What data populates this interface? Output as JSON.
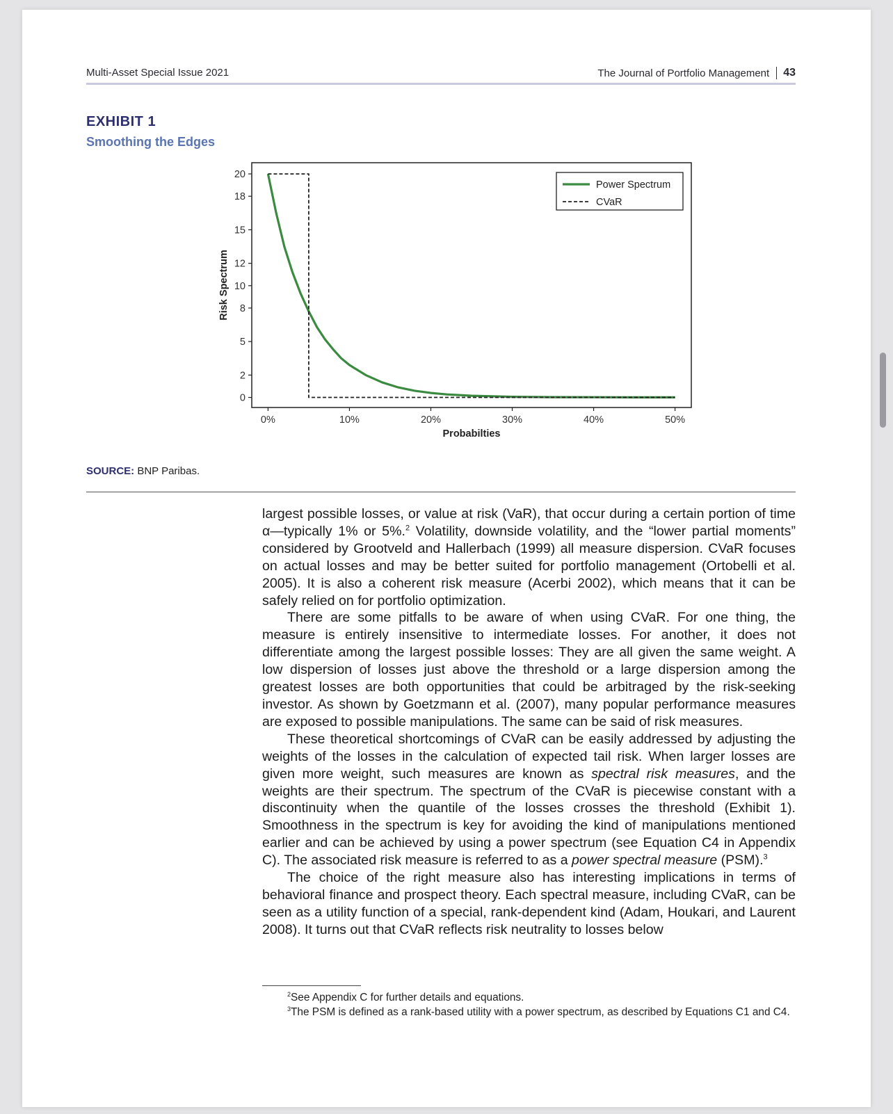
{
  "header": {
    "left": "Multi-Asset Special Issue 2021",
    "journal": "The Journal of Portfolio Management",
    "page_number": "43"
  },
  "exhibit": {
    "label": "EXHIBIT 1",
    "title": "Smoothing the Edges"
  },
  "source": {
    "label": "SOURCE:",
    "text": "BNP Paribas."
  },
  "chart_data": {
    "type": "line",
    "title": "",
    "xlabel": "Probabilties",
    "ylabel": "Risk Spectrum",
    "xlim": [
      -0.02,
      0.52
    ],
    "ylim": [
      -0.9,
      21
    ],
    "x_ticks": [
      0,
      0.1,
      0.2,
      0.3,
      0.4,
      0.5
    ],
    "x_tick_labels": [
      "0%",
      "10%",
      "20%",
      "30%",
      "40%",
      "50%"
    ],
    "y_ticks": [
      0,
      2,
      5,
      8,
      10,
      12,
      15,
      18,
      20
    ],
    "y_tick_labels": [
      "0",
      "2",
      "5",
      "8",
      "10",
      "12",
      "15",
      "18",
      "20"
    ],
    "grid": false,
    "legend": "top-right",
    "series": [
      {
        "name": "Power Spectrum",
        "style": "solid",
        "color": "#3a8a3f",
        "x": [
          0,
          0.01,
          0.02,
          0.03,
          0.04,
          0.05,
          0.06,
          0.07,
          0.08,
          0.09,
          0.1,
          0.12,
          0.14,
          0.16,
          0.18,
          0.2,
          0.22,
          0.25,
          0.3,
          0.35,
          0.4,
          0.45,
          0.5
        ],
        "y": [
          20,
          16.5,
          13.5,
          11.2,
          9.3,
          7.7,
          6.3,
          5.2,
          4.3,
          3.5,
          2.9,
          2.0,
          1.35,
          0.9,
          0.6,
          0.4,
          0.27,
          0.15,
          0.06,
          0.03,
          0.02,
          0.01,
          0.01
        ]
      },
      {
        "name": "CVaR",
        "style": "dashed",
        "color": "#222222",
        "x": [
          0,
          0.05,
          0.05,
          0.5
        ],
        "y": [
          20,
          20,
          0,
          0
        ]
      }
    ]
  },
  "body": {
    "p1_a": "largest possible losses, or value at risk (VaR), that occur during a certain portion of time α—typically 1% or 5%.",
    "p1_fn": "2",
    "p1_b": " Volatility, downside volatility, and the “lower partial moments” considered by Grootveld and Hallerbach (1999) all measure dispersion. CVaR focuses on actual losses and may be better suited for portfolio management (Ortobelli et al. 2005). It is also a coherent risk measure (Acerbi 2002), which means that it can be safely relied on for portfolio optimization.",
    "p2": "There are some pitfalls to be aware of when using CVaR. For one thing, the measure is entirely insensitive to intermediate losses. For another, it does not differentiate among the largest possible losses: They are all given the same weight. A low dispersion of losses just above the threshold or a large dispersion among the greatest losses are both opportunities that could be arbitraged by the risk-seeking investor. As shown by Goetzmann et al. (2007), many popular performance measures are exposed to possible manipulations. The same can be said of risk measures.",
    "p3_a": "These theoretical shortcomings of CVaR can be easily addressed by adjusting the weights of the losses in the calculation of expected tail risk. When larger losses are given more weight, such measures are known as ",
    "p3_i1": "spectral risk measures",
    "p3_b": ", and the weights are their spectrum. The spectrum of the CVaR is piecewise constant with a discontinuity when the quantile of the losses crosses the threshold (Exhibit 1). Smoothness in the spectrum is key for avoiding the kind of manipulations mentioned earlier and can be achieved by using a power spectrum (see Equation C4 in Appendix C). The associated risk measure is referred to as a ",
    "p3_i2": "power spectral measure",
    "p3_c": " (PSM).",
    "p3_fn": "3",
    "p4": "The choice of the right measure also has interesting implications in terms of behavioral finance and prospect theory. Each spectral measure, including CVaR, can be seen as a utility function of a special, rank-dependent kind (Adam, Houkari, and Laurent 2008). It turns out that CVaR reflects risk neutrality to losses below"
  },
  "footnotes": [
    {
      "num": "2",
      "text": "See Appendix C for further details and equations."
    },
    {
      "num": "3",
      "text": "The PSM is defined as a rank-based utility with a power spectrum, as described by Equations C1 and C4."
    }
  ]
}
